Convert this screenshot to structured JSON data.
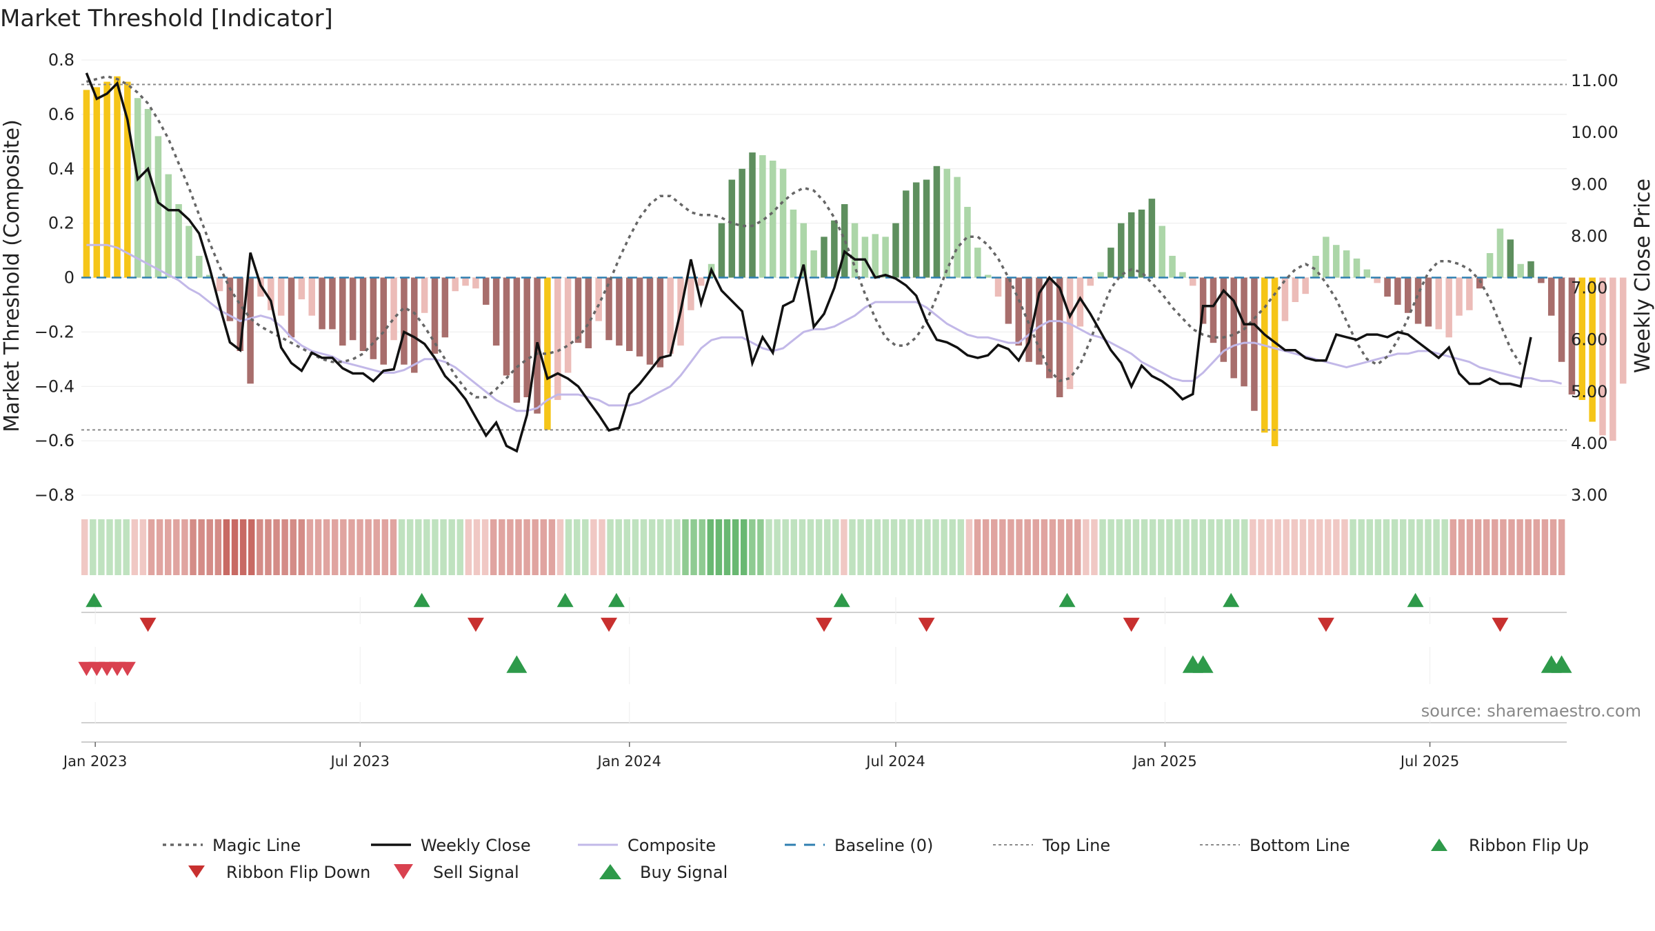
{
  "title": "Market Threshold [Indicator]",
  "source": "source: sharemaestro.com",
  "chart_data": {
    "type": "bar",
    "left_axis": {
      "label": "Market Threshold (Composite)",
      "range": [
        -0.8,
        0.8
      ],
      "ticks": [
        0.8,
        0.6,
        0.4,
        0.2,
        0,
        -0.2,
        -0.4,
        -0.6,
        -0.8
      ],
      "tick_labels": [
        "0.8",
        "0.6",
        "0.4",
        "0.2",
        "0",
        "−0.2",
        "−0.4",
        "−0.6",
        "−0.8"
      ]
    },
    "right_axis": {
      "label": "Weekly Close Price",
      "range": [
        3.0,
        11.4
      ],
      "ticks": [
        11,
        10,
        9,
        8,
        7,
        6,
        5,
        4,
        3
      ],
      "tick_labels": [
        "11.00",
        "10.00",
        "9.00",
        "8.00",
        "7.00",
        "6.00",
        "5.00",
        "4.00",
        "3.00"
      ]
    },
    "x_axis": {
      "start": "2022-12-26",
      "week_count": 145,
      "ticks": [
        {
          "label": "Jan 2023",
          "date": "2023-01-01"
        },
        {
          "label": "Jul 2023",
          "date": "2023-07-01"
        },
        {
          "label": "Jan 2024",
          "date": "2024-01-01"
        },
        {
          "label": "Jul 2024",
          "date": "2024-07-01"
        },
        {
          "label": "Jan 2025",
          "date": "2025-01-01"
        },
        {
          "label": "Jul 2025",
          "date": "2025-07-01"
        }
      ]
    },
    "top_line": 0.71,
    "bottom_line": -0.56,
    "baseline": 0,
    "colors": {
      "extreme": "#f5c518",
      "strong_up": "#5e8f5e",
      "weak_up": "#acd6a8",
      "strong_down": "#a86e6c",
      "weak_down": "#ecbcb8",
      "weekly_close": "#111111",
      "magic_line": "#666666",
      "composite": "#c2b8e8",
      "baseline": "#2f7fb0",
      "buy": "#2e9a4a",
      "sell": "#d9414f",
      "ribbon_flip_down": "#c8302f"
    },
    "series": [
      {
        "name": "Composite Bars",
        "key": "bars",
        "values": [
          0.69,
          0.7,
          0.72,
          0.74,
          0.72,
          0.66,
          0.62,
          0.52,
          0.38,
          0.27,
          0.19,
          0.08,
          0.01,
          -0.05,
          -0.16,
          -0.27,
          -0.39,
          -0.07,
          -0.12,
          -0.14,
          -0.22,
          -0.08,
          -0.14,
          -0.19,
          -0.19,
          -0.25,
          -0.23,
          -0.27,
          -0.3,
          -0.32,
          -0.23,
          -0.32,
          -0.35,
          -0.13,
          -0.28,
          -0.22,
          -0.05,
          -0.03,
          -0.04,
          -0.1,
          -0.25,
          -0.36,
          -0.46,
          -0.44,
          -0.5,
          -0.56,
          -0.45,
          -0.35,
          -0.24,
          -0.26,
          -0.16,
          -0.23,
          -0.25,
          -0.27,
          -0.29,
          -0.32,
          -0.33,
          -0.28,
          -0.25,
          -0.12,
          -0.03,
          0.05,
          0.2,
          0.36,
          0.4,
          0.46,
          0.45,
          0.43,
          0.4,
          0.25,
          0.2,
          0.1,
          0.15,
          0.21,
          0.27,
          0.2,
          0.15,
          0.16,
          0.15,
          0.2,
          0.32,
          0.35,
          0.36,
          0.41,
          0.4,
          0.37,
          0.26,
          0.11,
          0.01,
          -0.07,
          -0.17,
          -0.25,
          -0.31,
          -0.32,
          -0.37,
          -0.44,
          -0.41,
          -0.18,
          -0.03,
          0.02,
          0.11,
          0.2,
          0.24,
          0.25,
          0.29,
          0.19,
          0.08,
          0.02,
          -0.03,
          -0.17,
          -0.24,
          -0.31,
          -0.37,
          -0.4,
          -0.49,
          -0.57,
          -0.62,
          -0.16,
          -0.09,
          -0.06,
          0.08,
          0.15,
          0.12,
          0.1,
          0.07,
          0.03,
          -0.02,
          -0.07,
          -0.1,
          -0.13,
          -0.17,
          -0.18,
          -0.19,
          -0.22,
          -0.14,
          -0.12,
          -0.04,
          0.09,
          0.18,
          0.14,
          0.05,
          0.06,
          -0.02,
          -0.14,
          -0.31,
          -0.43,
          -0.45,
          -0.53,
          -0.58,
          -0.6,
          -0.39
        ],
        "levels": [
          0,
          0,
          0,
          0,
          0,
          1,
          1,
          1,
          1,
          1,
          1,
          1,
          1,
          1,
          2,
          2,
          2,
          1,
          1,
          1,
          2,
          1,
          1,
          2,
          2,
          2,
          2,
          2,
          2,
          2,
          1,
          2,
          2,
          1,
          2,
          2,
          1,
          1,
          1,
          2,
          2,
          2,
          2,
          2,
          2,
          0,
          1,
          1,
          2,
          2,
          1,
          2,
          2,
          2,
          2,
          2,
          2,
          1,
          1,
          1,
          1,
          1,
          2,
          2,
          2,
          2,
          1,
          1,
          1,
          1,
          1,
          1,
          2,
          2,
          2,
          1,
          1,
          1,
          1,
          2,
          2,
          2,
          2,
          2,
          1,
          1,
          1,
          1,
          1,
          1,
          2,
          2,
          2,
          2,
          2,
          2,
          1,
          1,
          1,
          1,
          2,
          2,
          2,
          2,
          2,
          1,
          1,
          1,
          1,
          2,
          2,
          2,
          2,
          2,
          2,
          0,
          0,
          1,
          1,
          1,
          1,
          1,
          1,
          1,
          1,
          1,
          1,
          2,
          2,
          2,
          2,
          2,
          1,
          1,
          1,
          1,
          2,
          1,
          1,
          2,
          1,
          2,
          2,
          2,
          2,
          2,
          0,
          0,
          1
        ]
      },
      {
        "name": "Weekly Close",
        "key": "close",
        "values": [
          11.15,
          10.65,
          10.75,
          10.95,
          10.25,
          9.1,
          9.3,
          8.65,
          8.5,
          8.5,
          8.32,
          8.05,
          7.4,
          6.65,
          5.95,
          5.8,
          7.68,
          7.05,
          6.75,
          5.85,
          5.55,
          5.4,
          5.75,
          5.65,
          5.65,
          5.45,
          5.35,
          5.35,
          5.2,
          5.4,
          5.43,
          6.15,
          6.05,
          5.92,
          5.65,
          5.3,
          5.1,
          4.85,
          4.5,
          4.15,
          4.4,
          3.95,
          3.85,
          4.55,
          5.95,
          5.25,
          5.35,
          5.25,
          5.1,
          4.82,
          4.55,
          4.25,
          4.3,
          4.95,
          5.15,
          5.4,
          5.65,
          5.7,
          6.55,
          7.55,
          6.7,
          7.35,
          6.95,
          6.75,
          6.55,
          5.55,
          6.05,
          5.75,
          6.65,
          6.75,
          7.45,
          6.25,
          6.5,
          7.0,
          7.7,
          7.55,
          7.55,
          7.2,
          7.25,
          7.18,
          7.05,
          6.85,
          6.35,
          6.0,
          5.95,
          5.85,
          5.7,
          5.65,
          5.7,
          5.9,
          5.82,
          5.6,
          5.95,
          6.9,
          7.2,
          7.0,
          6.45,
          6.8,
          6.5,
          6.15,
          5.8,
          5.55,
          5.1,
          5.5,
          5.3,
          5.2,
          5.05,
          4.85,
          4.95,
          6.65,
          6.65,
          6.95,
          6.75,
          6.3,
          6.3,
          6.1,
          5.95,
          5.8,
          5.8,
          5.65,
          5.6,
          5.6,
          6.1,
          6.05,
          6.0,
          6.1,
          6.1,
          6.05,
          6.15,
          6.1,
          5.95,
          5.8,
          5.65,
          5.85,
          5.35,
          5.15,
          5.15,
          5.25,
          5.15,
          5.15,
          5.1,
          6.05
        ],
        "axis": "right"
      },
      {
        "name": "Magic Line",
        "key": "magic",
        "values": [
          0.72,
          0.73,
          0.74,
          0.73,
          0.71,
          0.68,
          0.64,
          0.58,
          0.51,
          0.42,
          0.33,
          0.23,
          0.13,
          0.04,
          -0.04,
          -0.1,
          -0.15,
          -0.18,
          -0.2,
          -0.22,
          -0.24,
          -0.26,
          -0.28,
          -0.3,
          -0.31,
          -0.31,
          -0.3,
          -0.28,
          -0.24,
          -0.2,
          -0.15,
          -0.11,
          -0.13,
          -0.18,
          -0.24,
          -0.3,
          -0.36,
          -0.41,
          -0.44,
          -0.44,
          -0.41,
          -0.37,
          -0.33,
          -0.3,
          -0.28,
          -0.28,
          -0.27,
          -0.25,
          -0.22,
          -0.17,
          -0.1,
          -0.02,
          0.07,
          0.15,
          0.22,
          0.27,
          0.3,
          0.3,
          0.27,
          0.24,
          0.23,
          0.23,
          0.22,
          0.2,
          0.19,
          0.19,
          0.21,
          0.24,
          0.28,
          0.31,
          0.33,
          0.32,
          0.28,
          0.22,
          0.14,
          0.04,
          -0.06,
          -0.15,
          -0.22,
          -0.25,
          -0.25,
          -0.22,
          -0.16,
          -0.07,
          0.03,
          0.11,
          0.15,
          0.15,
          0.12,
          0.07,
          0.0,
          -0.08,
          -0.17,
          -0.26,
          -0.34,
          -0.38,
          -0.37,
          -0.32,
          -0.23,
          -0.13,
          -0.04,
          0.01,
          0.03,
          0.02,
          -0.02,
          -0.06,
          -0.11,
          -0.15,
          -0.19,
          -0.21,
          -0.22,
          -0.22,
          -0.21,
          -0.19,
          -0.15,
          -0.11,
          -0.06,
          -0.01,
          0.03,
          0.05,
          0.03,
          -0.02,
          -0.08,
          -0.16,
          -0.24,
          -0.3,
          -0.32,
          -0.29,
          -0.23,
          -0.15,
          -0.06,
          0.02,
          0.06,
          0.06,
          0.05,
          0.03,
          -0.01,
          -0.08,
          -0.17,
          -0.26,
          -0.32
        ],
        "axis": "right"
      },
      {
        "name": "Composite",
        "key": "composite",
        "values": [
          0.12,
          0.12,
          0.12,
          0.11,
          0.09,
          0.07,
          0.05,
          0.03,
          0.01,
          -0.01,
          -0.04,
          -0.06,
          -0.09,
          -0.12,
          -0.14,
          -0.16,
          -0.15,
          -0.14,
          -0.15,
          -0.18,
          -0.22,
          -0.25,
          -0.27,
          -0.28,
          -0.29,
          -0.31,
          -0.32,
          -0.33,
          -0.34,
          -0.35,
          -0.35,
          -0.34,
          -0.32,
          -0.3,
          -0.3,
          -0.31,
          -0.33,
          -0.36,
          -0.39,
          -0.42,
          -0.45,
          -0.47,
          -0.49,
          -0.49,
          -0.48,
          -0.45,
          -0.43,
          -0.43,
          -0.43,
          -0.44,
          -0.45,
          -0.47,
          -0.47,
          -0.47,
          -0.46,
          -0.44,
          -0.42,
          -0.4,
          -0.36,
          -0.31,
          -0.26,
          -0.23,
          -0.22,
          -0.22,
          -0.22,
          -0.24,
          -0.26,
          -0.27,
          -0.26,
          -0.23,
          -0.2,
          -0.19,
          -0.19,
          -0.18,
          -0.16,
          -0.14,
          -0.11,
          -0.09,
          -0.09,
          -0.09,
          -0.09,
          -0.09,
          -0.11,
          -0.14,
          -0.17,
          -0.19,
          -0.21,
          -0.22,
          -0.22,
          -0.23,
          -0.24,
          -0.24,
          -0.21,
          -0.18,
          -0.16,
          -0.16,
          -0.17,
          -0.19,
          -0.21,
          -0.22,
          -0.24,
          -0.26,
          -0.28,
          -0.31,
          -0.33,
          -0.35,
          -0.37,
          -0.38,
          -0.38,
          -0.35,
          -0.31,
          -0.27,
          -0.25,
          -0.24,
          -0.24,
          -0.25,
          -0.26,
          -0.27,
          -0.28,
          -0.29,
          -0.3,
          -0.31,
          -0.32,
          -0.33,
          -0.32,
          -0.31,
          -0.3,
          -0.29,
          -0.28,
          -0.28,
          -0.27,
          -0.27,
          -0.28,
          -0.29,
          -0.3,
          -0.31,
          -0.33,
          -0.34,
          -0.35,
          -0.36,
          -0.37,
          -0.37,
          -0.38,
          -0.38,
          -0.39
        ]
      }
    ],
    "ribbon": {
      "description": "per-week intensity, positive = green, negative = red",
      "values": [
        -1,
        1,
        1,
        1,
        1,
        1,
        -1,
        -1,
        -2,
        -2,
        -2,
        -2,
        -2,
        -3,
        -3,
        -3,
        -3,
        -4,
        -4,
        -4,
        -4,
        -3,
        -3,
        -3,
        -3,
        -3,
        -3,
        -2,
        -2,
        -2,
        -2,
        -2,
        -2,
        -2,
        -2,
        -2,
        -2,
        -2,
        1,
        1,
        1,
        1,
        1,
        1,
        1,
        1,
        -1,
        -1,
        -1,
        -2,
        -2,
        -2,
        -2,
        -2,
        -2,
        -2,
        -2,
        -1,
        1,
        1,
        1,
        -1,
        -1,
        1,
        1,
        1,
        1,
        1,
        1,
        1,
        1,
        1,
        2,
        2,
        2,
        3,
        3,
        3,
        3,
        3,
        2,
        2,
        1,
        1,
        1,
        1,
        1,
        1,
        1,
        1,
        1,
        -1,
        1,
        1,
        1,
        1,
        1,
        1,
        1,
        1,
        1,
        1,
        1,
        1,
        1,
        1,
        -1,
        -2,
        -2,
        -2,
        -2,
        -2,
        -2,
        -2,
        -2,
        -2,
        -2,
        -2,
        -2,
        -2,
        -1,
        -1,
        1,
        1,
        1,
        1,
        1,
        1,
        1,
        1,
        1,
        1,
        1,
        1,
        1,
        1,
        1,
        1,
        1,
        1,
        -1,
        -1,
        -1,
        -1,
        -1,
        -1,
        -1,
        -1,
        -1,
        -1,
        -1,
        -1,
        1,
        1,
        1,
        1,
        1,
        1,
        1,
        1,
        1,
        1,
        1,
        1,
        -2,
        -2,
        -2,
        -2,
        -2,
        -2,
        -2,
        -2,
        -2,
        -2,
        -2,
        -2,
        -2,
        -2
      ],
      "colors": {
        "g1": "#bfe2bf",
        "g2": "#8fcb92",
        "g3": "#69b872",
        "r1": "#f0c8c4",
        "r2": "#e0a4a0",
        "r3": "#d48c87",
        "r4": "#c86a64"
      }
    },
    "ribbon_flip_up_weeks": [
      1,
      33,
      47,
      52,
      74,
      96,
      112,
      130
    ],
    "ribbon_flip_down_weeks": [
      6,
      38,
      51,
      72,
      82,
      102,
      121,
      138
    ],
    "sell_signal_weeks": [
      0,
      1,
      2,
      3,
      4
    ],
    "buy_signal_weeks": [
      42,
      108,
      109,
      143,
      144
    ]
  },
  "legend": [
    {
      "label": "Magic Line",
      "key": "magic"
    },
    {
      "label": "Weekly Close",
      "key": "close"
    },
    {
      "label": "Composite",
      "key": "composite"
    },
    {
      "label": "Baseline (0)",
      "key": "baseline"
    },
    {
      "label": "Top Line",
      "key": "top"
    },
    {
      "label": "Bottom Line",
      "key": "bottom"
    },
    {
      "label": "Ribbon Flip Up",
      "key": "flipup"
    },
    {
      "label": "Ribbon Flip Down",
      "key": "flipdown"
    },
    {
      "label": "Sell Signal",
      "key": "sell"
    },
    {
      "label": "Buy Signal",
      "key": "buy"
    }
  ]
}
